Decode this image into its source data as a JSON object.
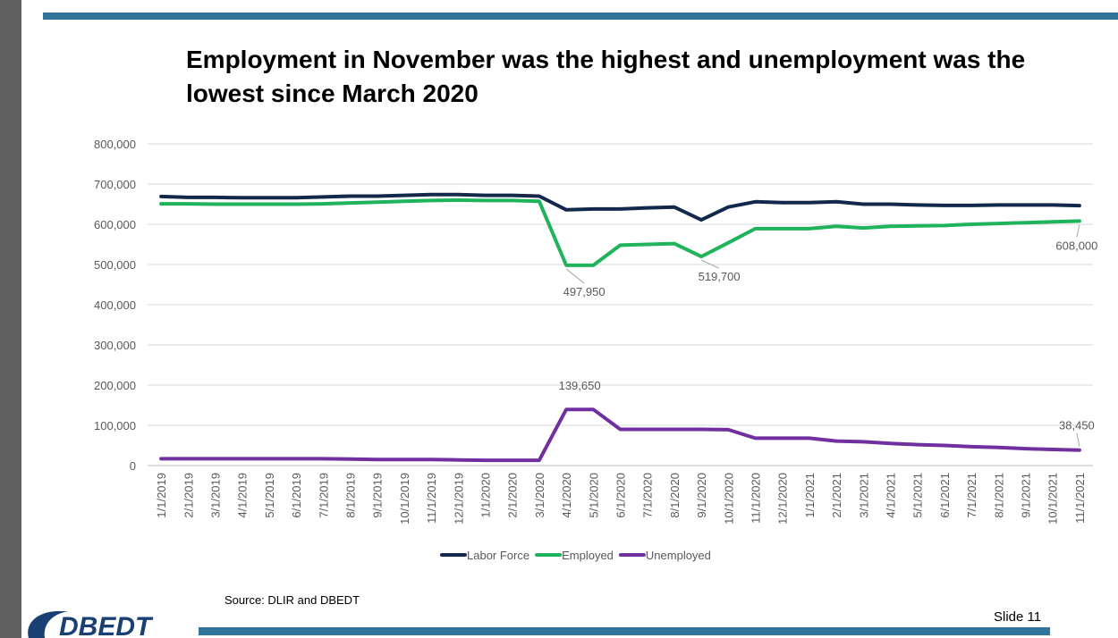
{
  "slide": {
    "title": "Employment in November was the highest and unemployment was the lowest since March 2020",
    "source": "Source: DLIR and DBEDT",
    "slide_number": "Slide 11",
    "logo_text": "DBEDT"
  },
  "colors": {
    "labor_force": "#13294b",
    "employed": "#1fb35b",
    "unemployed": "#7030a0",
    "grid": "#d9d9d9",
    "axis_text": "#595959",
    "accent_bar": "#31759b",
    "logo": "#1a3f73"
  },
  "chart_data": {
    "type": "line",
    "ylim": [
      0,
      800000
    ],
    "y_ticks": [
      "0",
      "100,000",
      "200,000",
      "300,000",
      "400,000",
      "500,000",
      "600,000",
      "700,000",
      "800,000"
    ],
    "grid": true,
    "legend_position": "bottom",
    "categories": [
      "1/1/2019",
      "2/1/2019",
      "3/1/2019",
      "4/1/2019",
      "5/1/2019",
      "6/1/2019",
      "7/1/2019",
      "8/1/2019",
      "9/1/2019",
      "10/1/2019",
      "11/1/2019",
      "12/1/2019",
      "1/1/2020",
      "2/1/2020",
      "3/1/2020",
      "4/1/2020",
      "5/1/2020",
      "6/1/2020",
      "7/1/2020",
      "8/1/2020",
      "9/1/2020",
      "10/1/2020",
      "11/1/2020",
      "12/1/2020",
      "1/1/2021",
      "2/1/2021",
      "3/1/2021",
      "4/1/2021",
      "5/1/2021",
      "6/1/2021",
      "7/1/2021",
      "8/1/2021",
      "9/1/2021",
      "10/1/2021",
      "11/1/2021"
    ],
    "series": [
      {
        "name": "Labor Force",
        "color_key": "labor_force",
        "values": [
          669000,
          667000,
          667000,
          666000,
          666000,
          666000,
          668000,
          670000,
          670000,
          672000,
          674000,
          674000,
          672000,
          672000,
          670000,
          636000,
          638000,
          638000,
          641000,
          643000,
          611000,
          643000,
          656000,
          654000,
          654000,
          656000,
          650000,
          650000,
          648000,
          647000,
          647000,
          648000,
          648000,
          648000,
          646450
        ]
      },
      {
        "name": "Employed",
        "color_key": "employed",
        "values": [
          651000,
          651000,
          650000,
          650000,
          650000,
          650000,
          651000,
          653000,
          655000,
          657000,
          659000,
          660000,
          659000,
          659000,
          657000,
          497950,
          497950,
          548000,
          550000,
          552000,
          519700,
          554000,
          589000,
          589000,
          589000,
          595000,
          591000,
          595000,
          596000,
          597000,
          600000,
          602000,
          604000,
          606000,
          608000
        ]
      },
      {
        "name": "Unemployed",
        "color_key": "unemployed",
        "values": [
          17000,
          17000,
          17000,
          17000,
          17000,
          17000,
          17000,
          16000,
          15000,
          15000,
          15000,
          14000,
          13000,
          13000,
          13000,
          139650,
          139650,
          90000,
          90000,
          90000,
          90000,
          89000,
          68000,
          68000,
          68000,
          61000,
          59000,
          55000,
          52000,
          50000,
          47000,
          45000,
          42000,
          40000,
          38450
        ]
      }
    ],
    "data_labels": [
      {
        "series": "Employed",
        "category": "4/1/2020",
        "text": "497,950"
      },
      {
        "series": "Employed",
        "category": "9/1/2020",
        "text": "519,700"
      },
      {
        "series": "Employed",
        "category": "11/1/2021",
        "text": "608,000"
      },
      {
        "series": "Unemployed",
        "category": "4/1/2020",
        "text": "139,650"
      },
      {
        "series": "Unemployed",
        "category": "11/1/2021",
        "text": "38,450"
      }
    ]
  }
}
